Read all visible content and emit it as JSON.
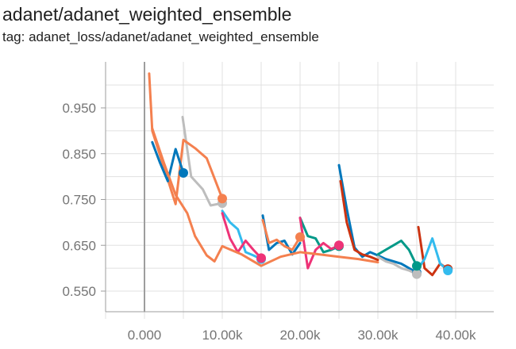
{
  "header": {
    "title": "adanet/adanet_weighted_ensemble",
    "tag": "tag: adanet_loss/adanet/adanet_weighted_ensemble"
  },
  "chart_data": {
    "type": "line",
    "title": "adanet/adanet_weighted_ensemble",
    "subtitle": "tag: adanet_loss/adanet/adanet_weighted_ensemble",
    "xlabel": "",
    "ylabel": "",
    "xlim": [
      -5000,
      45000
    ],
    "ylim": [
      0.5,
      1.035
    ],
    "grid": true,
    "legend": "none",
    "x_ticks": [
      0,
      10000,
      20000,
      30000,
      40000
    ],
    "x_tick_labels": [
      "0.000",
      "10.00k",
      "20.00k",
      "30.00k",
      "40.00k"
    ],
    "y_ticks": [
      0.55,
      0.65,
      0.75,
      0.85,
      0.95
    ],
    "y_tick_labels": [
      "0.550",
      "0.650",
      "0.750",
      "0.850",
      "0.950"
    ],
    "series": [
      {
        "color": "#bdbdbd",
        "points": [
          [
            4900,
            0.93
          ],
          [
            6000,
            0.8
          ],
          [
            7500,
            0.772
          ],
          [
            8500,
            0.737
          ],
          [
            10000,
            0.742
          ]
        ],
        "end_marker": true
      },
      {
        "color": "#f4804f",
        "points": [
          [
            600,
            1.025
          ],
          [
            1000,
            0.9
          ],
          [
            2500,
            0.82
          ],
          [
            4000,
            0.74
          ],
          [
            5000,
            0.88
          ],
          [
            6500,
            0.862
          ],
          [
            8000,
            0.84
          ],
          [
            10000,
            0.752
          ]
        ],
        "end_marker": true
      },
      {
        "color": "#0077bb",
        "points": [
          [
            1000,
            0.875
          ],
          [
            2000,
            0.83
          ],
          [
            3000,
            0.79
          ],
          [
            4000,
            0.86
          ],
          [
            5000,
            0.808
          ]
        ],
        "end_marker": true
      },
      {
        "color": "#33bbee",
        "points": [
          [
            10000,
            0.725
          ],
          [
            11000,
            0.7
          ],
          [
            12000,
            0.685
          ],
          [
            13000,
            0.635
          ],
          [
            14000,
            0.628
          ],
          [
            15000,
            0.62
          ]
        ],
        "end_marker": true
      },
      {
        "color": "#ee3377",
        "points": [
          [
            10000,
            0.72
          ],
          [
            11000,
            0.665
          ],
          [
            12000,
            0.635
          ],
          [
            13000,
            0.66
          ],
          [
            14000,
            0.64
          ],
          [
            15000,
            0.622
          ]
        ],
        "end_marker": true
      },
      {
        "color": "#0077bb",
        "points": [
          [
            15200,
            0.715
          ],
          [
            16000,
            0.64
          ],
          [
            17000,
            0.655
          ],
          [
            18000,
            0.66
          ],
          [
            19000,
            0.63
          ],
          [
            20000,
            0.655
          ]
        ],
        "end_marker": false
      },
      {
        "color": "#f4804f",
        "points": [
          [
            15200,
            0.705
          ],
          [
            16000,
            0.655
          ],
          [
            17000,
            0.662
          ],
          [
            18000,
            0.648
          ],
          [
            19000,
            0.64
          ],
          [
            20000,
            0.668
          ]
        ],
        "end_marker": true
      },
      {
        "color": "#009988",
        "points": [
          [
            20000,
            0.71
          ],
          [
            21000,
            0.67
          ],
          [
            22000,
            0.665
          ],
          [
            23000,
            0.635
          ],
          [
            24000,
            0.64
          ],
          [
            25000,
            0.648
          ]
        ],
        "end_marker": true
      },
      {
        "color": "#ee3377",
        "points": [
          [
            20000,
            0.71
          ],
          [
            21000,
            0.6
          ],
          [
            22000,
            0.64
          ],
          [
            23000,
            0.655
          ],
          [
            24000,
            0.642
          ],
          [
            25000,
            0.65
          ]
        ],
        "end_marker": true
      },
      {
        "color": "#0077bb",
        "points": [
          [
            25000,
            0.825
          ],
          [
            26000,
            0.73
          ],
          [
            27000,
            0.645
          ],
          [
            28000,
            0.625
          ],
          [
            29000,
            0.635
          ],
          [
            30000,
            0.628
          ],
          [
            31000,
            0.62
          ],
          [
            32000,
            0.615
          ],
          [
            33000,
            0.61
          ],
          [
            34000,
            0.6
          ],
          [
            35000,
            0.59
          ]
        ],
        "end_marker": true
      },
      {
        "color": "#cc3311",
        "points": [
          [
            25200,
            0.79
          ],
          [
            26000,
            0.7
          ],
          [
            27000,
            0.64
          ],
          [
            28000,
            0.63
          ],
          [
            29000,
            0.625
          ],
          [
            30000,
            0.618
          ]
        ],
        "end_marker": false
      },
      {
        "color": "#bdbdbd",
        "points": [
          [
            30000,
            0.625
          ],
          [
            31000,
            0.615
          ],
          [
            32000,
            0.61
          ],
          [
            33000,
            0.6
          ],
          [
            34000,
            0.595
          ],
          [
            35000,
            0.587
          ]
        ],
        "end_marker": true
      },
      {
        "color": "#009988",
        "points": [
          [
            30000,
            0.63
          ],
          [
            31000,
            0.64
          ],
          [
            32000,
            0.65
          ],
          [
            33000,
            0.66
          ],
          [
            34000,
            0.64
          ],
          [
            35000,
            0.605
          ]
        ],
        "end_marker": true
      },
      {
        "color": "#cc3311",
        "points": [
          [
            35200,
            0.69
          ],
          [
            36000,
            0.6
          ],
          [
            37000,
            0.585
          ],
          [
            38000,
            0.61
          ],
          [
            39000,
            0.598
          ]
        ],
        "end_marker": true
      },
      {
        "color": "#33bbee",
        "points": [
          [
            35200,
            0.6
          ],
          [
            36000,
            0.62
          ],
          [
            37000,
            0.665
          ],
          [
            38000,
            0.61
          ],
          [
            39000,
            0.595
          ]
        ],
        "end_marker": true
      },
      {
        "color": "#f4804f",
        "points": [
          [
            1000,
            0.905
          ],
          [
            2500,
            0.83
          ],
          [
            4000,
            0.76
          ],
          [
            5500,
            0.72
          ],
          [
            6500,
            0.67
          ],
          [
            8000,
            0.628
          ],
          [
            9000,
            0.615
          ],
          [
            10000,
            0.648
          ],
          [
            12500,
            0.63
          ],
          [
            15000,
            0.605
          ],
          [
            17500,
            0.625
          ],
          [
            20000,
            0.635
          ],
          [
            22500,
            0.63
          ],
          [
            25000,
            0.625
          ],
          [
            27500,
            0.62
          ],
          [
            30000,
            0.613
          ]
        ],
        "end_marker": false
      }
    ]
  }
}
